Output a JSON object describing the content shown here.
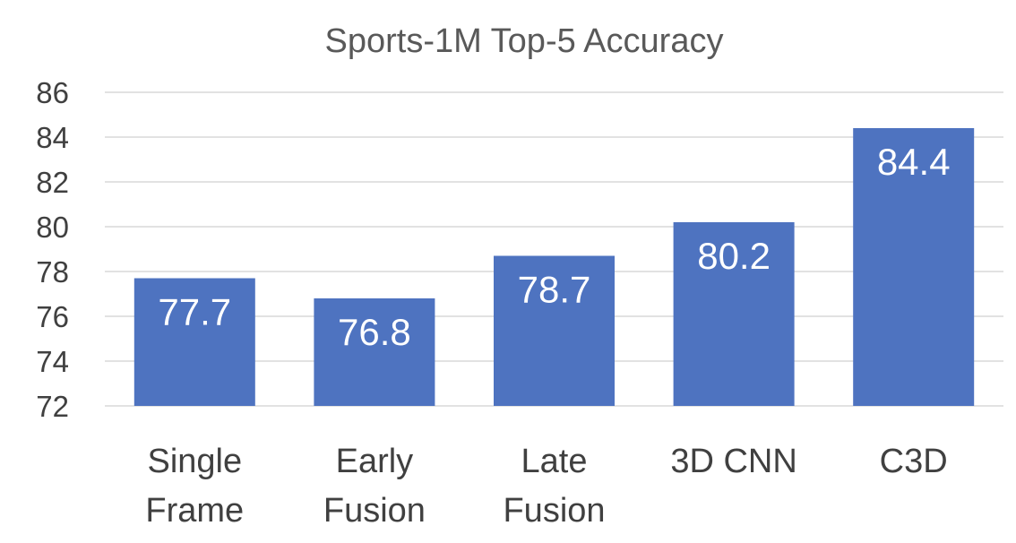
{
  "chart_data": {
    "type": "bar",
    "title": "Sports-1M Top-5 Accuracy",
    "xlabel": "",
    "ylabel": "",
    "categories": [
      [
        "Single",
        "Frame"
      ],
      [
        "Early",
        "Fusion"
      ],
      [
        "Late",
        "Fusion"
      ],
      [
        "3D CNN"
      ],
      [
        "C3D"
      ]
    ],
    "values": [
      77.7,
      76.8,
      78.7,
      80.2,
      84.4
    ],
    "data_labels": [
      "77.7",
      "76.8",
      "78.7",
      "80.2",
      "84.4"
    ],
    "ylim": [
      72,
      86
    ],
    "yticks": [
      72,
      74,
      76,
      78,
      80,
      82,
      84,
      86
    ],
    "bar_color": "#4E73C0",
    "grid": true,
    "legend": "none"
  }
}
